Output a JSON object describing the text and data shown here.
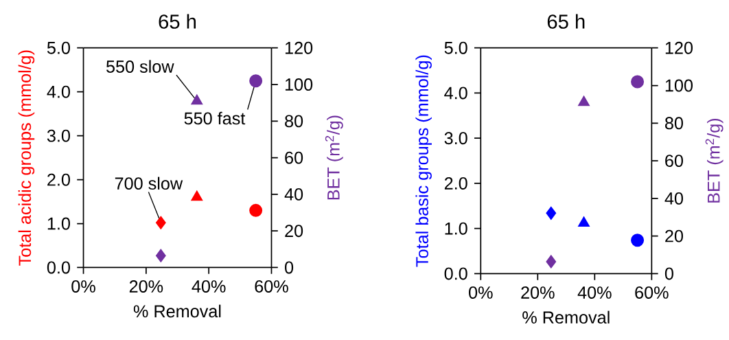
{
  "chart_data": [
    {
      "type": "scatter",
      "title": "65 h",
      "xlabel": "% Removal",
      "ylabel": "Total acidic groups (mmol/g)",
      "y2label": "BET (m$^{2}$/g)",
      "xlim": [
        0,
        0.6
      ],
      "xticks": [
        {
          "value": 0,
          "label": "0%"
        },
        {
          "value": 0.2,
          "label": "20%"
        },
        {
          "value": 0.4,
          "label": "40%"
        },
        {
          "value": 0.6,
          "label": "60%"
        }
      ],
      "ylim": [
        0,
        5
      ],
      "yticks": [
        {
          "value": 0,
          "label": "0.0"
        },
        {
          "value": 1,
          "label": "1.0"
        },
        {
          "value": 2,
          "label": "2.0"
        },
        {
          "value": 3,
          "label": "3.0"
        },
        {
          "value": 4,
          "label": "4.0"
        },
        {
          "value": 5,
          "label": "5.0"
        }
      ],
      "y2lim": [
        0,
        120
      ],
      "y2ticks": [
        0,
        20,
        40,
        60,
        80,
        100,
        120
      ],
      "series": [
        {
          "color": "#ff0000",
          "marker": "diamond",
          "x": [
            0.247
          ],
          "values": [
            1.02
          ]
        },
        {
          "color": "#ff0000",
          "marker": "triangle",
          "x": [
            0.362
          ],
          "values": [
            1.6
          ]
        },
        {
          "color": "#ff0000",
          "marker": "circle",
          "x": [
            0.55
          ],
          "values": [
            1.3
          ]
        },
        {
          "color": "#7030a0",
          "marker": "diamond",
          "axis": "y2",
          "x": [
            0.247
          ],
          "values": [
            6.5
          ]
        },
        {
          "color": "#7030a0",
          "marker": "triangle",
          "axis": "y2",
          "x": [
            0.362
          ],
          "values": [
            91
          ]
        },
        {
          "color": "#7030a0",
          "marker": "circle",
          "axis": "y2",
          "x": [
            0.55
          ],
          "values": [
            102
          ]
        }
      ],
      "annotations": [
        {
          "text": "550 slow",
          "x": 0.362,
          "y": 3.79
        },
        {
          "text": "550 fast",
          "x": 0.55,
          "y": 4.25
        },
        {
          "text": "700 slow",
          "x": 0.247,
          "y": 1.02
        }
      ]
    },
    {
      "type": "scatter",
      "title": "65 h",
      "xlabel": "% Removal",
      "ylabel": "Total basic groups (mmol/g)",
      "y2label": "BET (m$^{2}$/g)",
      "xlim": [
        0,
        0.6
      ],
      "xticks": [
        {
          "value": 0,
          "label": "0%"
        },
        {
          "value": 0.2,
          "label": "20%"
        },
        {
          "value": 0.4,
          "label": "40%"
        },
        {
          "value": 0.6,
          "label": "60%"
        }
      ],
      "ylim": [
        0,
        5
      ],
      "yticks": [
        {
          "value": 0,
          "label": "0.0"
        },
        {
          "value": 1,
          "label": "1.0"
        },
        {
          "value": 2,
          "label": "2.0"
        },
        {
          "value": 3,
          "label": "3.0"
        },
        {
          "value": 4,
          "label": "4.0"
        },
        {
          "value": 5,
          "label": "5.0"
        }
      ],
      "y2lim": [
        0,
        120
      ],
      "y2ticks": [
        0,
        20,
        40,
        60,
        80,
        100,
        120
      ],
      "series": [
        {
          "color": "#0000ff",
          "marker": "diamond",
          "x": [
            0.247
          ],
          "values": [
            1.34
          ]
        },
        {
          "color": "#0000ff",
          "marker": "triangle",
          "x": [
            0.362
          ],
          "values": [
            1.12
          ]
        },
        {
          "color": "#0000ff",
          "marker": "circle",
          "x": [
            0.55
          ],
          "values": [
            0.74
          ]
        },
        {
          "color": "#7030a0",
          "marker": "diamond",
          "axis": "y2",
          "x": [
            0.247
          ],
          "values": [
            6.4
          ]
        },
        {
          "color": "#7030a0",
          "marker": "triangle",
          "axis": "y2",
          "x": [
            0.362
          ],
          "values": [
            91
          ]
        },
        {
          "color": "#7030a0",
          "marker": "circle",
          "axis": "y2",
          "x": [
            0.55
          ],
          "values": [
            102
          ]
        }
      ]
    }
  ]
}
